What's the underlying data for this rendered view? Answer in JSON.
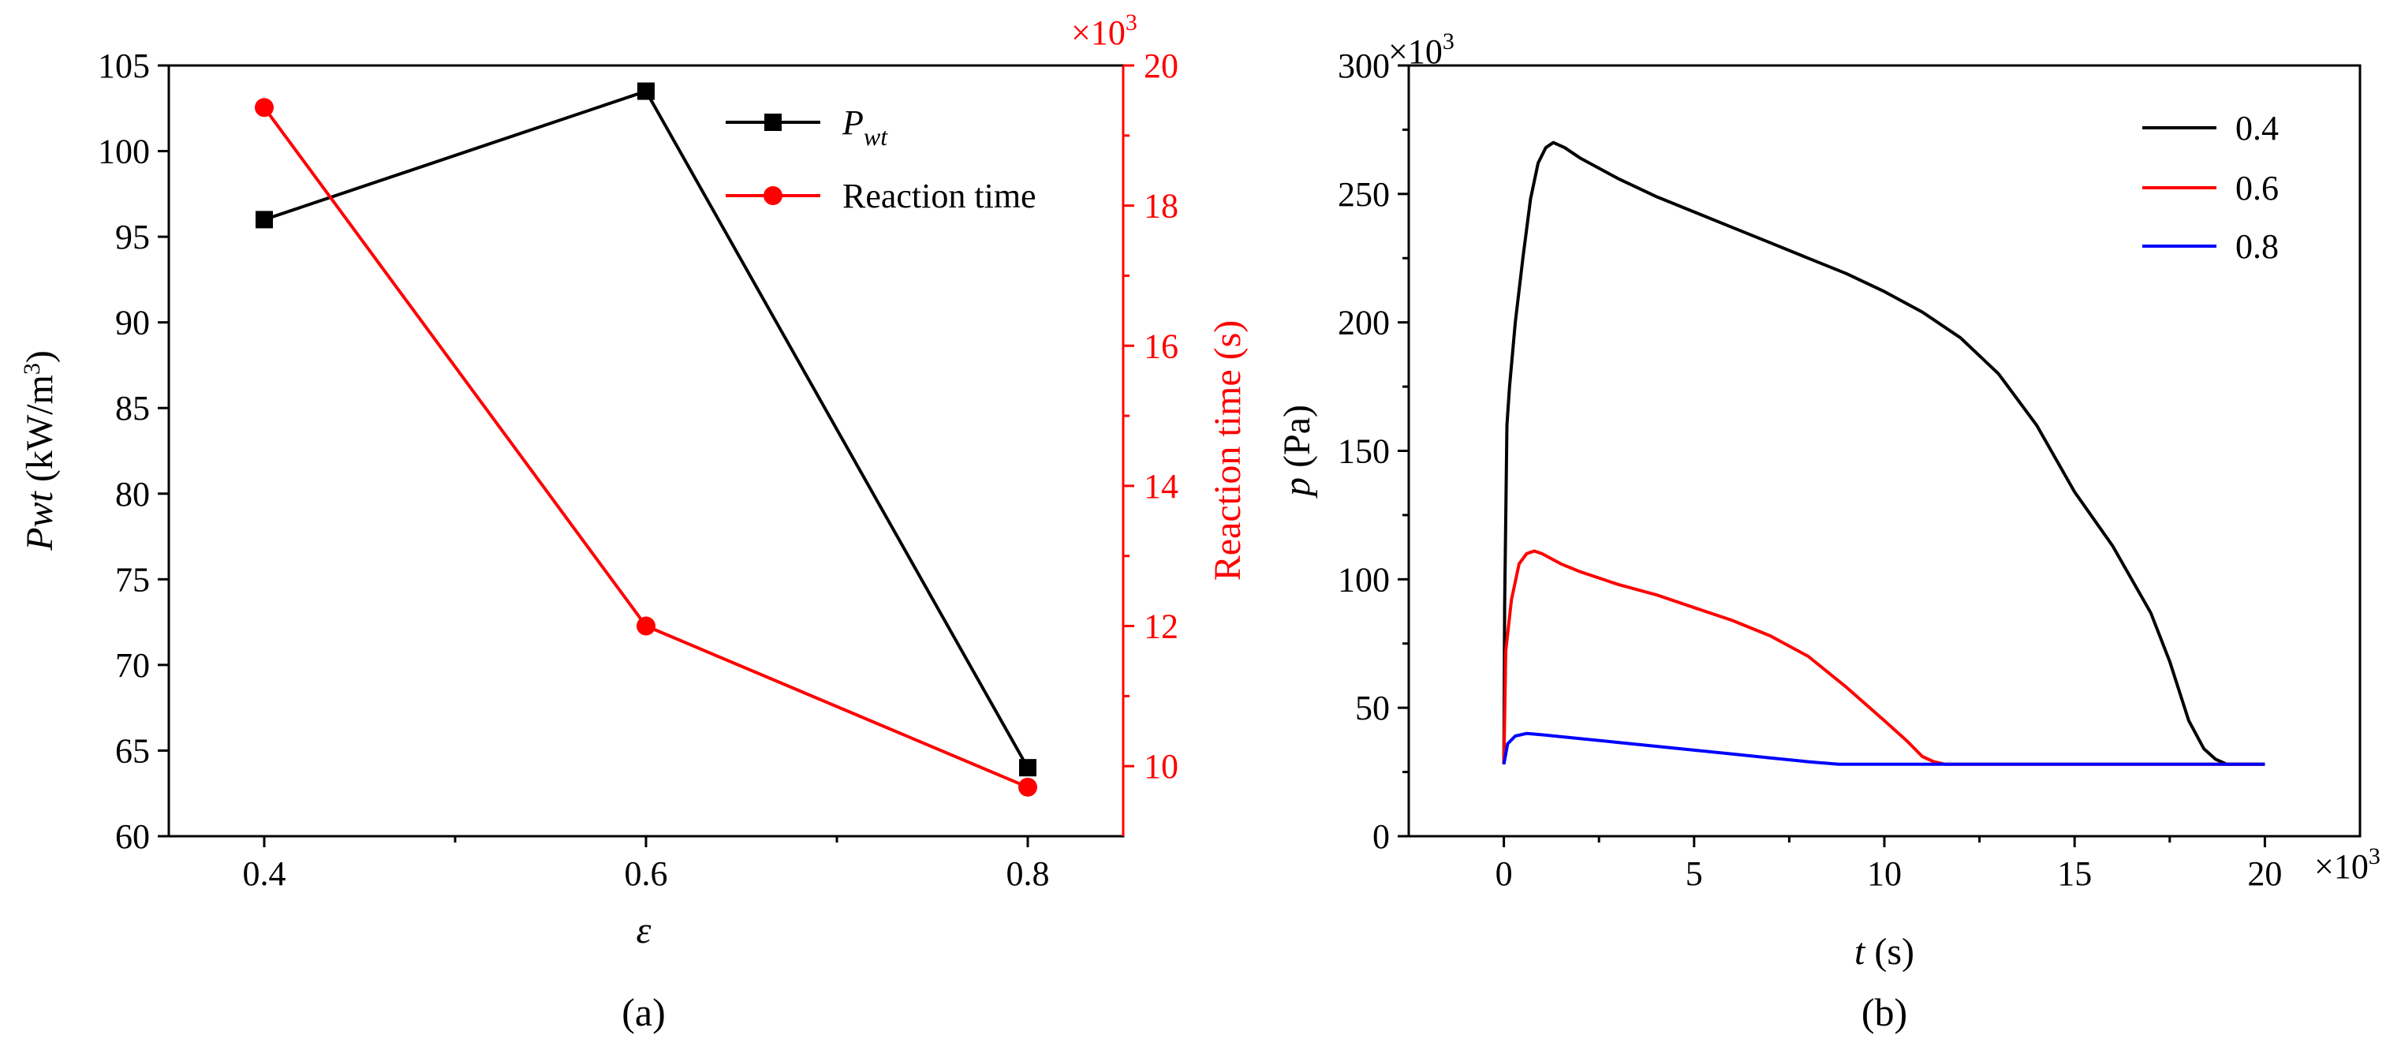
{
  "chart_data": [
    {
      "type": "line",
      "panel_label": "(a)",
      "xlabel": "ε",
      "ylabel_left": "Pwt (kW/m³)",
      "ylabel_left_base": "Pwt",
      "ylabel_left_units": " (kW/m",
      "ylabel_left_sup": "3",
      "ylabel_left_close": ")",
      "ylabel_right": "Reaction time (s)",
      "right_axis_multiplier": "×10³",
      "right_axis_multiplier_base": "×10",
      "right_axis_multiplier_exp": "3",
      "xlim": [
        0.35,
        0.85
      ],
      "ylim_left": [
        60,
        105
      ],
      "ylim_right": [
        9000,
        20000
      ],
      "x_ticks": [
        "0.4",
        "0.6",
        "0.8"
      ],
      "y_ticks_left": [
        "60",
        "65",
        "70",
        "75",
        "80",
        "85",
        "90",
        "95",
        "100",
        "105"
      ],
      "y_ticks_right": [
        "10",
        "12",
        "14",
        "16",
        "18",
        "20"
      ],
      "series": [
        {
          "name": "Pwt",
          "legend_main": "P",
          "legend_sub": "wt",
          "axis": "left",
          "color": "#000000",
          "marker": "square",
          "x": [
            0.4,
            0.6,
            0.8
          ],
          "values": [
            96,
            103.5,
            64
          ]
        },
        {
          "name": "Reaction time",
          "legend_main": "Reaction time",
          "axis": "right",
          "color": "#ff0000",
          "marker": "circle",
          "x": [
            0.4,
            0.6,
            0.8
          ],
          "values": [
            19400,
            12000,
            9700
          ]
        }
      ]
    },
    {
      "type": "line",
      "panel_label": "(b)",
      "xlabel": "t (s)",
      "xlabel_var": "t",
      "xlabel_units": " (s)",
      "ylabel": "p (Pa)",
      "ylabel_var": "p",
      "ylabel_units": " (Pa)",
      "x_multiplier": "×10³",
      "x_multiplier_base": "×10",
      "x_multiplier_exp": "3",
      "y_multiplier": "×10³",
      "y_multiplier_base": "×10",
      "y_multiplier_exp": "3",
      "xlim": [
        -2.5,
        22.5
      ],
      "ylim": [
        0,
        300
      ],
      "x_ticks": [
        "0",
        "5",
        "10",
        "15",
        "20"
      ],
      "y_ticks": [
        "0",
        "50",
        "100",
        "150",
        "200",
        "250",
        "300"
      ],
      "series": [
        {
          "name": "0.4",
          "color": "#000000",
          "x": [
            0,
            0.02,
            0.08,
            0.15,
            0.3,
            0.5,
            0.7,
            0.9,
            1.1,
            1.3,
            1.6,
            2.0,
            3.0,
            4.0,
            5.0,
            6.0,
            7.0,
            8.0,
            9.0,
            10.0,
            11.0,
            12.0,
            13.0,
            14.0,
            15.0,
            16.0,
            17.0,
            17.5,
            18.0,
            18.4,
            18.7,
            19.0,
            19.3,
            20.0
          ],
          "values": [
            28,
            90,
            160,
            175,
            200,
            225,
            248,
            262,
            268,
            270,
            268,
            264,
            256,
            249,
            243,
            237,
            231,
            225,
            219,
            212,
            204,
            194,
            180,
            160,
            134,
            113,
            87,
            68,
            45,
            34,
            30,
            28,
            28,
            28
          ]
        },
        {
          "name": "0.6",
          "color": "#ff0000",
          "x": [
            0,
            0.05,
            0.2,
            0.4,
            0.6,
            0.8,
            1.0,
            1.5,
            2.0,
            3.0,
            4.0,
            5.0,
            6.0,
            7.0,
            8.0,
            9.0,
            10.0,
            10.6,
            11.0,
            11.3,
            11.6,
            12.0,
            20.0
          ],
          "values": [
            28,
            72,
            92,
            106,
            110,
            111,
            110,
            106,
            103,
            98,
            94,
            89,
            84,
            78,
            70,
            58,
            45,
            37,
            31,
            29,
            28,
            28,
            28
          ]
        },
        {
          "name": "0.8",
          "color": "#0000ff",
          "x": [
            0,
            0.1,
            0.3,
            0.6,
            1.0,
            2.0,
            3.0,
            4.0,
            5.0,
            6.0,
            7.0,
            8.0,
            8.8,
            9.5,
            20.0
          ],
          "values": [
            28,
            36,
            39,
            40,
            39.5,
            38,
            36.5,
            35,
            33.5,
            32,
            30.5,
            29,
            28,
            28,
            28
          ]
        }
      ]
    }
  ]
}
